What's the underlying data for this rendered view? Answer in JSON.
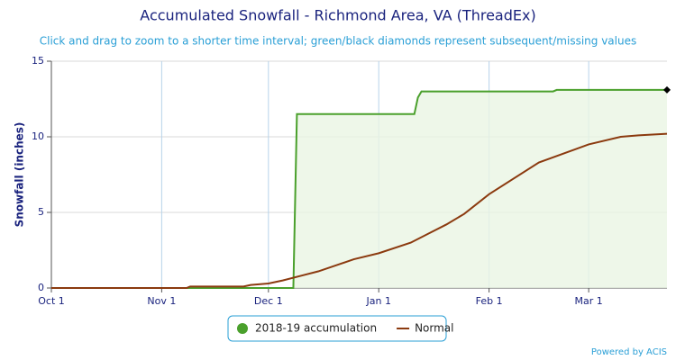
{
  "chart_data": {
    "type": "line",
    "title": "Accumulated Snowfall - Richmond Area, VA (ThreadEx)",
    "subtitle": "Click and drag to zoom to a shorter time interval; green/black diamonds represent subsequent/missing values",
    "y_label": "Snowfall (inches)",
    "credit": "Powered by ACIS",
    "xlim": [
      "Oct 1",
      "Mar 23"
    ],
    "xticks": [
      "Oct 1",
      "Nov 1",
      "Dec 1",
      "Jan 1",
      "Feb 1",
      "Mar 1"
    ],
    "ylim": [
      0,
      15
    ],
    "yticks": [
      0,
      5,
      10,
      15
    ],
    "grid": true,
    "legend": "bottom",
    "series": [
      {
        "name": "2018-19 accumulation",
        "color": "#4aa02c",
        "fill": "#eaf5e4",
        "x": [
          "Oct 1",
          "Dec 8",
          "Dec 9",
          "Jan 11",
          "Jan 12",
          "Jan 13",
          "Feb 19",
          "Feb 20",
          "Mar 23"
        ],
        "values": [
          0,
          0,
          11.5,
          11.5,
          12.6,
          13.0,
          13.0,
          13.1,
          13.1
        ]
      },
      {
        "name": "Normal",
        "color": "#8b3a0f",
        "x": [
          "Oct 1",
          "Nov 8",
          "Nov 9",
          "Nov 24",
          "Nov 26",
          "Dec 1",
          "Dec 5",
          "Dec 10",
          "Dec 15",
          "Dec 20",
          "Dec 25",
          "Jan 1",
          "Jan 10",
          "Jan 15",
          "Jan 20",
          "Jan 25",
          "Feb 1",
          "Feb 15",
          "Mar 1",
          "Mar 10",
          "Mar 15",
          "Mar 23"
        ],
        "values": [
          0,
          0,
          0.1,
          0.1,
          0.2,
          0.3,
          0.5,
          0.8,
          1.1,
          1.5,
          1.9,
          2.3,
          3.0,
          3.6,
          4.2,
          4.9,
          6.2,
          8.3,
          9.5,
          10.0,
          10.1,
          10.2
        ]
      }
    ]
  }
}
